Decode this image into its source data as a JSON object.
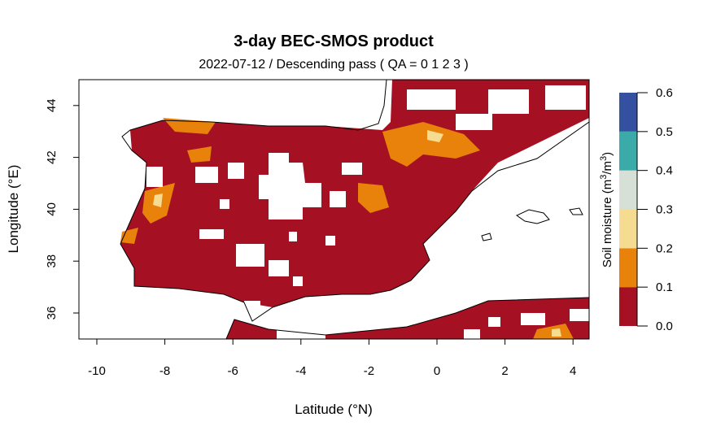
{
  "title": "3-day BEC-SMOS product",
  "subtitle": "2022-07-12 / Descending pass ( QA = 0 1 2 3 )",
  "xlabel": "Latitude (°N)",
  "ylabel": "Longitude (°E)",
  "x_ticks": [
    "-10",
    "-8",
    "-6",
    "-4",
    "-2",
    "0",
    "2",
    "4"
  ],
  "y_ticks": [
    "36",
    "38",
    "40",
    "42",
    "44"
  ],
  "x_range": [
    -10.5,
    4.5
  ],
  "y_range": [
    35,
    45
  ],
  "colorbar": {
    "label": "Soil moisture (m³/m³)",
    "label_main": "Soil moisture (m",
    "label_sup1": "3",
    "label_mid": "/m",
    "label_sup2": "3",
    "label_end": ")",
    "ticks": [
      "0.0",
      "0.1",
      "0.2",
      "0.3",
      "0.4",
      "0.5",
      "0.6"
    ],
    "breaks": [
      0.0,
      0.1,
      0.2,
      0.3,
      0.4,
      0.5,
      0.6
    ],
    "colors": [
      "#A51122",
      "#E8820A",
      "#F5DC90",
      "#D6E0D6",
      "#3AABA8",
      "#3450A0"
    ]
  }
}
